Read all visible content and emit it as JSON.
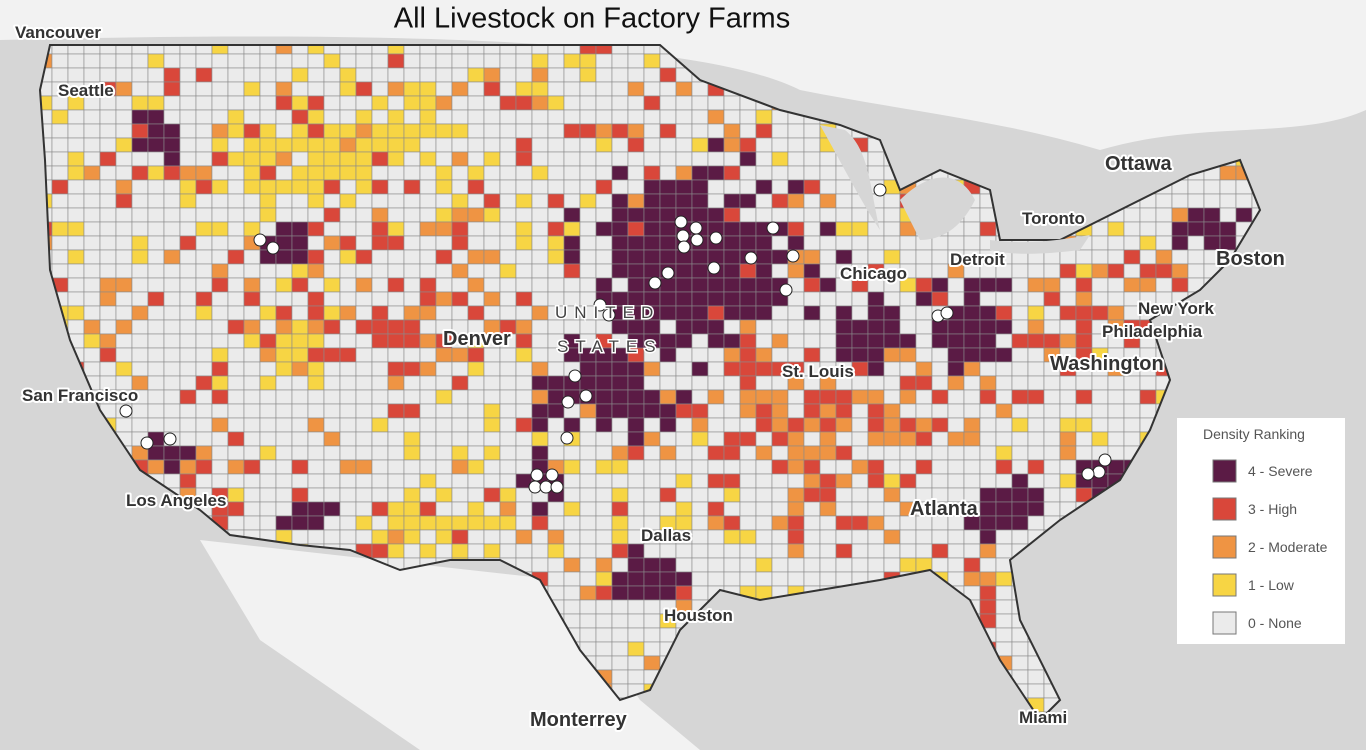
{
  "title": "All Livestock on Factory Farms",
  "cities": [
    "Vancouver",
    "Seattle",
    "Ottawa",
    "Toronto",
    "Detroit",
    "Chicago",
    "Boston",
    "New York",
    "Philadelphia",
    "Washington",
    "Denver",
    "San Francisco",
    "Los Angeles",
    "St. Louis",
    "Dallas",
    "Houston",
    "Atlanta",
    "Monterrey",
    "Miami"
  ],
  "country_label": [
    "UNITED",
    "STATES"
  ],
  "legend": {
    "title": "Density Ranking",
    "items": [
      {
        "label": "4 - Severe",
        "color": "#5b1b45"
      },
      {
        "label": "3 - High",
        "color": "#d9473a"
      },
      {
        "label": "2 - Moderate",
        "color": "#ef9443"
      },
      {
        "label": "1 - Low",
        "color": "#f7d544"
      },
      {
        "label": "0 - None",
        "color": "#ebebeb"
      }
    ]
  }
}
